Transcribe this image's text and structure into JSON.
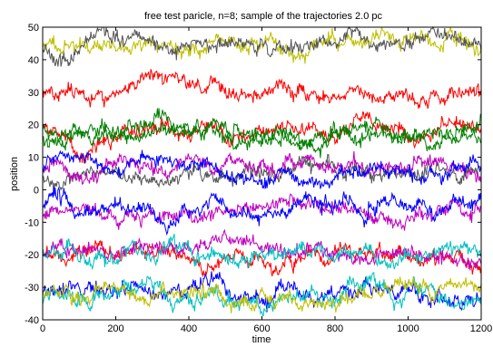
{
  "chart_data": {
    "type": "line",
    "title": "free test paricle, n=8; sample of the trajectories 2.0 pc",
    "xlabel": "time",
    "ylabel": "position",
    "xlim": [
      0,
      1200
    ],
    "ylim": [
      -40,
      50
    ],
    "xticks": [
      0,
      200,
      400,
      600,
      800,
      1000,
      1200
    ],
    "yticks": [
      -40,
      -30,
      -20,
      -10,
      0,
      10,
      20,
      30,
      40,
      50
    ],
    "grid": false,
    "legend": "none",
    "samples_per_series": 600,
    "series": [
      {
        "color": "#bfbf00",
        "mean": 44.5,
        "amplitude": 2.4,
        "seed": 11
      },
      {
        "color": "#555555",
        "mean": 43.5,
        "amplitude": 2.0,
        "seed": 23
      },
      {
        "color": "#ff0000",
        "mean": 30.5,
        "amplitude": 2.2,
        "seed": 37
      },
      {
        "color": "#ff0000",
        "mean": 17.5,
        "amplitude": 2.5,
        "seed": 41
      },
      {
        "color": "#008000",
        "mean": 18.5,
        "amplitude": 2.4,
        "seed": 53
      },
      {
        "color": "#008000",
        "mean": 16.0,
        "amplitude": 2.4,
        "seed": 67
      },
      {
        "color": "#555555",
        "mean": 4.5,
        "amplitude": 2.4,
        "seed": 71
      },
      {
        "color": "#bf00bf",
        "mean": 6.5,
        "amplitude": 2.5,
        "seed": 83
      },
      {
        "color": "#0000ff",
        "mean": 5.5,
        "amplitude": 2.0,
        "seed": 97
      },
      {
        "color": "#bf00bf",
        "mean": -7.5,
        "amplitude": 2.2,
        "seed": 101
      },
      {
        "color": "#0000ff",
        "mean": -5.5,
        "amplitude": 2.6,
        "seed": 113
      },
      {
        "color": "#ff0000",
        "mean": -19.5,
        "amplitude": 2.2,
        "seed": 127
      },
      {
        "color": "#bf00bf",
        "mean": -20.0,
        "amplitude": 2.2,
        "seed": 131
      },
      {
        "color": "#00bfbf",
        "mean": -19.0,
        "amplitude": 2.4,
        "seed": 139
      },
      {
        "color": "#0000ff",
        "mean": -32.5,
        "amplitude": 2.5,
        "seed": 149
      },
      {
        "color": "#00bfbf",
        "mean": -33.0,
        "amplitude": 2.5,
        "seed": 157
      },
      {
        "color": "#bfbf00",
        "mean": -32.0,
        "amplitude": 2.6,
        "seed": 163
      }
    ]
  }
}
